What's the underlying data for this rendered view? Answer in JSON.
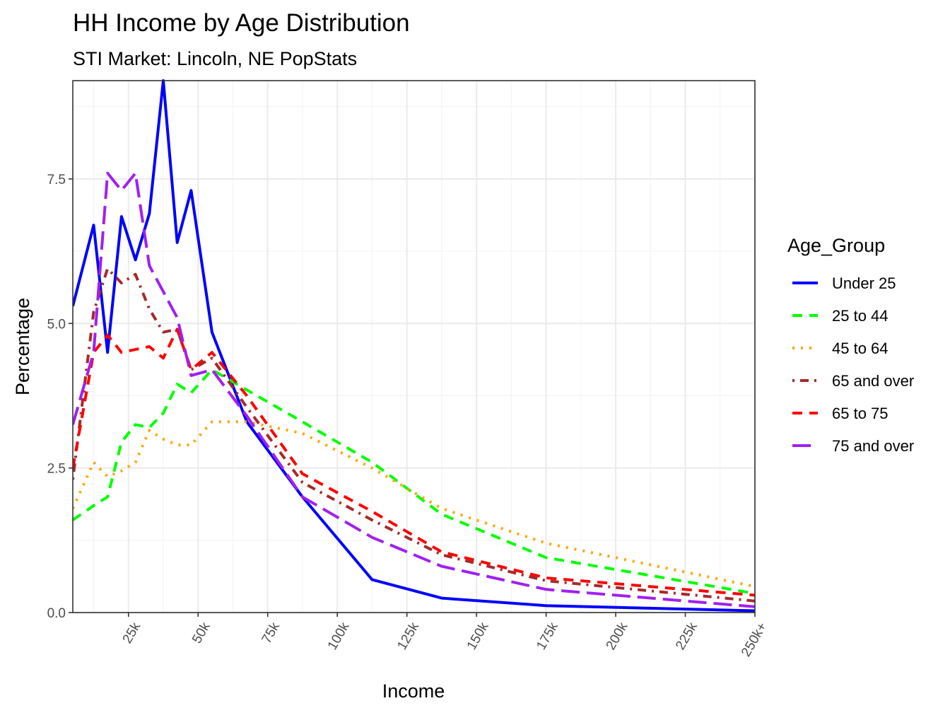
{
  "chart_data": {
    "type": "line",
    "title": "HH Income by Age Distribution",
    "subtitle": "STI Market: Lincoln, NE PopStats",
    "xlabel": "Income",
    "ylabel": "Percentage",
    "legend_title": "Age_Group",
    "legend_position": "right",
    "grid": true,
    "xlim": [
      5,
      250
    ],
    "ylim": [
      0,
      9.2
    ],
    "x_ticks": [
      {
        "value": 25,
        "label": "25k"
      },
      {
        "value": 50,
        "label": "50k"
      },
      {
        "value": 75,
        "label": "75k"
      },
      {
        "value": 100,
        "label": "100k"
      },
      {
        "value": 125,
        "label": "125k"
      },
      {
        "value": 150,
        "label": "150k"
      },
      {
        "value": 175,
        "label": "175k"
      },
      {
        "value": 200,
        "label": "200k"
      },
      {
        "value": 225,
        "label": "225k"
      },
      {
        "value": 250,
        "label": "250k+"
      }
    ],
    "y_ticks": [
      {
        "value": 0,
        "label": "0.0"
      },
      {
        "value": 2.5,
        "label": "2.5"
      },
      {
        "value": 5,
        "label": "5.0"
      },
      {
        "value": 7.5,
        "label": "7.5"
      }
    ],
    "x": [
      5,
      12.5,
      17.5,
      22.5,
      27.5,
      32.5,
      37.5,
      42.5,
      47.5,
      55,
      67.5,
      87.5,
      112.5,
      137.5,
      175,
      250
    ],
    "series": [
      {
        "name": "Under 25",
        "color": "#0000ff",
        "dash": "solid",
        "values": [
          5.3,
          6.7,
          4.5,
          6.85,
          6.1,
          6.9,
          9.2,
          6.4,
          7.3,
          4.85,
          3.3,
          2.0,
          0.57,
          0.25,
          0.12,
          0.03
        ]
      },
      {
        "name": "25 to 44",
        "color": "#00ff00",
        "dash": "dashed",
        "values": [
          1.6,
          1.85,
          2.0,
          2.95,
          3.25,
          3.2,
          3.45,
          3.95,
          3.8,
          4.2,
          3.85,
          3.3,
          2.6,
          1.7,
          0.95,
          0.33
        ]
      },
      {
        "name": "45 to 64",
        "color": "#ffa500",
        "dash": "dotted",
        "values": [
          1.8,
          2.6,
          2.35,
          2.45,
          2.6,
          3.15,
          3.0,
          2.9,
          2.9,
          3.3,
          3.3,
          3.1,
          2.5,
          1.8,
          1.2,
          0.45
        ]
      },
      {
        "name": "65 and over",
        "color": "#a52a2a",
        "dash": "dotdash",
        "values": [
          2.3,
          5.2,
          5.95,
          5.7,
          5.85,
          5.25,
          4.85,
          4.9,
          4.2,
          4.4,
          3.55,
          2.25,
          1.6,
          1.0,
          0.55,
          0.2
        ]
      },
      {
        "name": "65 to 75",
        "color": "#ff0000",
        "dash": "dashed",
        "values": [
          2.5,
          4.5,
          4.8,
          4.5,
          4.55,
          4.6,
          4.4,
          4.9,
          4.2,
          4.5,
          3.75,
          2.4,
          1.75,
          1.05,
          0.6,
          0.3
        ]
      },
      {
        "name": "75 and over",
        "color": "#a020f0",
        "dash": "longdash",
        "values": [
          3.25,
          4.5,
          7.6,
          7.3,
          7.6,
          6.0,
          5.55,
          5.1,
          4.1,
          4.2,
          3.4,
          2.0,
          1.3,
          0.8,
          0.4,
          0.1
        ]
      }
    ]
  }
}
